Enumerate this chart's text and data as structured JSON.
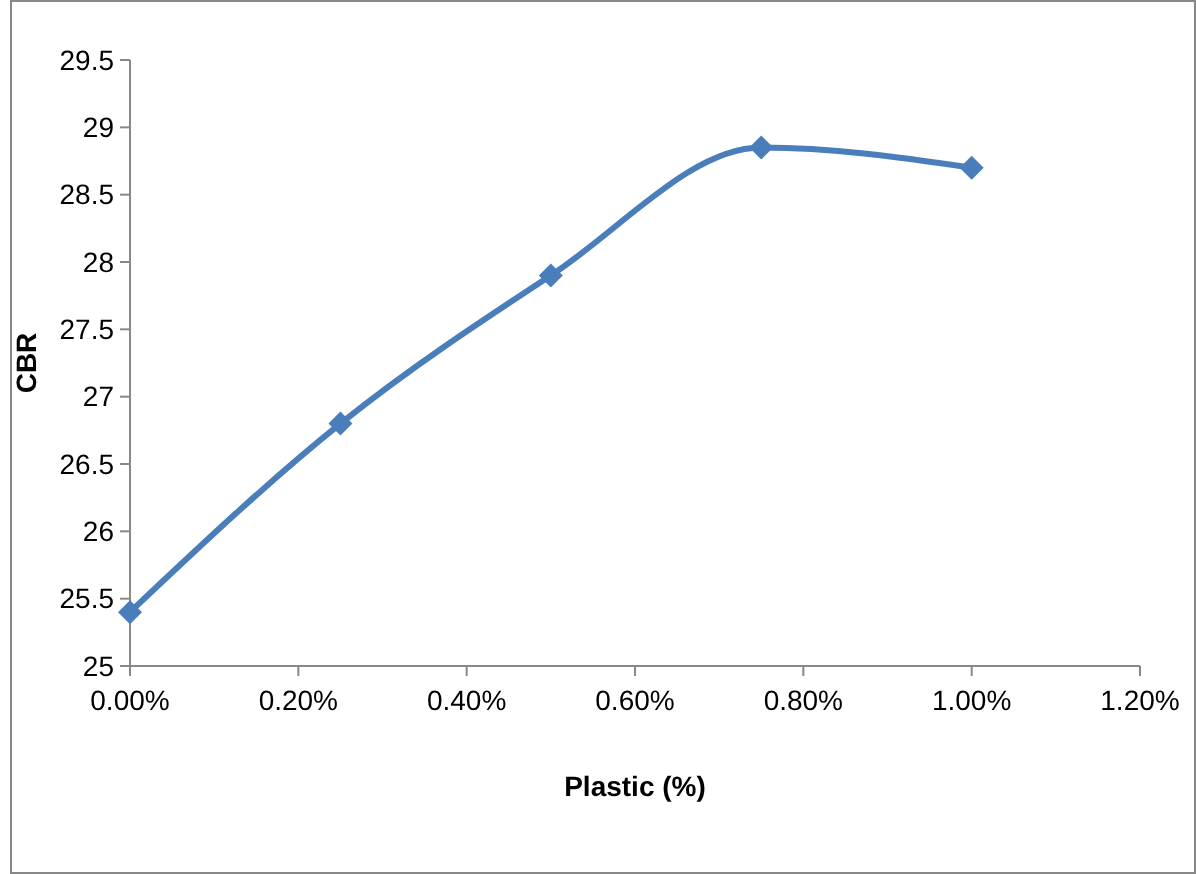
{
  "chart_data": {
    "type": "line",
    "xlabel": "Plastic (%)",
    "ylabel": "CBR",
    "x": [
      0,
      0.25,
      0.5,
      0.75,
      1.0
    ],
    "series": [
      {
        "color": "#4a7ebb",
        "values": [
          25.4,
          26.8,
          27.9,
          28.85,
          28.7
        ]
      }
    ],
    "xlim": [
      0,
      1.2
    ],
    "xticks": [
      {
        "value": 0,
        "label": "0.00%"
      },
      {
        "value": 0.2,
        "label": "0.20%"
      },
      {
        "value": 0.4,
        "label": "0.40%"
      },
      {
        "value": 0.6,
        "label": "0.60%"
      },
      {
        "value": 0.8,
        "label": "0.80%"
      },
      {
        "value": 1.0,
        "label": "1.00%"
      },
      {
        "value": 1.2,
        "label": "1.20%"
      }
    ],
    "ylim": [
      25,
      29.5
    ],
    "yticks": [
      25,
      25.5,
      26,
      26.5,
      27,
      27.5,
      28,
      28.5,
      29,
      29.5
    ],
    "grid": false,
    "marker": "diamond",
    "line_style": "solid"
  }
}
